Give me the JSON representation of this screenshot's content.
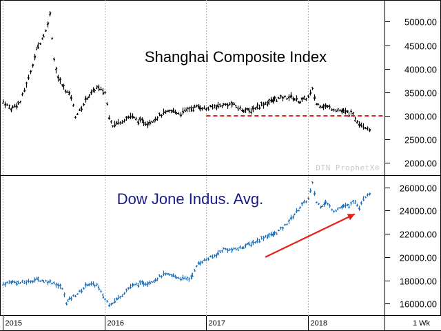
{
  "chart_data": [
    {
      "type": "bar",
      "style": "ohlc-weekly",
      "title": "Shanghai Composite Index",
      "ylim": [
        1800,
        5400
      ],
      "yticks": [
        2000,
        2500,
        3000,
        3500,
        4000,
        4500,
        5000
      ],
      "ytick_labels": [
        "2000.00",
        "2500.00",
        "3000.00",
        "3500.00",
        "4000.00",
        "4500.00",
        "5000.00"
      ],
      "y_axis_position": "right",
      "grid": "vertical-at-year-start",
      "color": "#000000",
      "reference_line": {
        "value": 3000,
        "start": "2017-01",
        "end": "2018-07",
        "color": "#e8201a",
        "style": "dashed"
      },
      "series": [
        {
          "values": [
            [
              2015.0,
              3300
            ],
            [
              2015.08,
              3150
            ],
            [
              2015.17,
              3300
            ],
            [
              2015.25,
              3800
            ],
            [
              2015.33,
              4400
            ],
            [
              2015.42,
              4800
            ],
            [
              2015.46,
              5150
            ],
            [
              2015.5,
              4200
            ],
            [
              2015.54,
              3800
            ],
            [
              2015.58,
              3650
            ],
            [
              2015.67,
              3400
            ],
            [
              2015.71,
              3000
            ],
            [
              2015.75,
              3100
            ],
            [
              2015.83,
              3400
            ],
            [
              2015.92,
              3600
            ],
            [
              2016.0,
              3500
            ],
            [
              2016.04,
              3000
            ],
            [
              2016.08,
              2800
            ],
            [
              2016.17,
              2900
            ],
            [
              2016.25,
              3000
            ],
            [
              2016.33,
              2900
            ],
            [
              2016.42,
              2850
            ],
            [
              2016.5,
              2950
            ],
            [
              2016.58,
              3050
            ],
            [
              2016.67,
              3100
            ],
            [
              2016.75,
              3050
            ],
            [
              2016.83,
              3150
            ],
            [
              2016.92,
              3200
            ],
            [
              2017.0,
              3150
            ],
            [
              2017.08,
              3200
            ],
            [
              2017.17,
              3230
            ],
            [
              2017.25,
              3250
            ],
            [
              2017.33,
              3150
            ],
            [
              2017.42,
              3100
            ],
            [
              2017.5,
              3200
            ],
            [
              2017.58,
              3270
            ],
            [
              2017.67,
              3350
            ],
            [
              2017.75,
              3380
            ],
            [
              2017.83,
              3400
            ],
            [
              2017.92,
              3300
            ],
            [
              2018.0,
              3400
            ],
            [
              2018.04,
              3550
            ],
            [
              2018.08,
              3250
            ],
            [
              2018.17,
              3200
            ],
            [
              2018.25,
              3150
            ],
            [
              2018.33,
              3100
            ],
            [
              2018.42,
              3050
            ],
            [
              2018.5,
              2850
            ],
            [
              2018.58,
              2750
            ],
            [
              2018.62,
              2700
            ]
          ]
        }
      ]
    },
    {
      "type": "bar",
      "style": "ohlc-weekly",
      "title": "Dow Jone Indus. Avg.",
      "ylim": [
        15200,
        26800
      ],
      "yticks": [
        16000,
        18000,
        20000,
        22000,
        24000,
        26000
      ],
      "ytick_labels": [
        "16000.00",
        "18000.00",
        "20000.00",
        "22000.00",
        "24000.00",
        "26000.00"
      ],
      "y_axis_position": "right",
      "grid": "vertical-at-year-start",
      "color": "#1f6fb8",
      "annotation": {
        "type": "arrow",
        "from": [
          "2017.58",
          20000
        ],
        "to": [
          "2018.46",
          23700
        ],
        "color": "#e8201a"
      },
      "series": [
        {
          "values": [
            [
              2015.0,
              17700
            ],
            [
              2015.08,
              17900
            ],
            [
              2015.17,
              17800
            ],
            [
              2015.25,
              17900
            ],
            [
              2015.33,
              18100
            ],
            [
              2015.42,
              17950
            ],
            [
              2015.5,
              17800
            ],
            [
              2015.58,
              17300
            ],
            [
              2015.62,
              16100
            ],
            [
              2015.67,
              16500
            ],
            [
              2015.75,
              17000
            ],
            [
              2015.83,
              17700
            ],
            [
              2015.92,
              17600
            ],
            [
              2016.0,
              16400
            ],
            [
              2016.04,
              16000
            ],
            [
              2016.08,
              16100
            ],
            [
              2016.17,
              16800
            ],
            [
              2016.25,
              17500
            ],
            [
              2016.33,
              17700
            ],
            [
              2016.42,
              17800
            ],
            [
              2016.5,
              18100
            ],
            [
              2016.58,
              18500
            ],
            [
              2016.67,
              18400
            ],
            [
              2016.75,
              18200
            ],
            [
              2016.83,
              18100
            ],
            [
              2016.88,
              18800
            ],
            [
              2016.92,
              19500
            ],
            [
              2017.0,
              19800
            ],
            [
              2017.08,
              20100
            ],
            [
              2017.17,
              20700
            ],
            [
              2017.25,
              20600
            ],
            [
              2017.33,
              20800
            ],
            [
              2017.42,
              21100
            ],
            [
              2017.5,
              21400
            ],
            [
              2017.58,
              21800
            ],
            [
              2017.67,
              22000
            ],
            [
              2017.75,
              22500
            ],
            [
              2017.83,
              23300
            ],
            [
              2017.92,
              24300
            ],
            [
              2018.0,
              25000
            ],
            [
              2018.04,
              26300
            ],
            [
              2018.08,
              24700
            ],
            [
              2018.12,
              24400
            ],
            [
              2018.17,
              24700
            ],
            [
              2018.25,
              24000
            ],
            [
              2018.33,
              24300
            ],
            [
              2018.42,
              24500
            ],
            [
              2018.46,
              24800
            ],
            [
              2018.5,
              24300
            ],
            [
              2018.54,
              25100
            ],
            [
              2018.58,
              25400
            ],
            [
              2018.62,
              25600
            ]
          ]
        }
      ]
    }
  ],
  "x_axis": {
    "year_labels": [
      "2015",
      "2016",
      "2017",
      "2018"
    ],
    "interval_label": "1 Wk"
  },
  "watermark": "DTN ProphetX®"
}
